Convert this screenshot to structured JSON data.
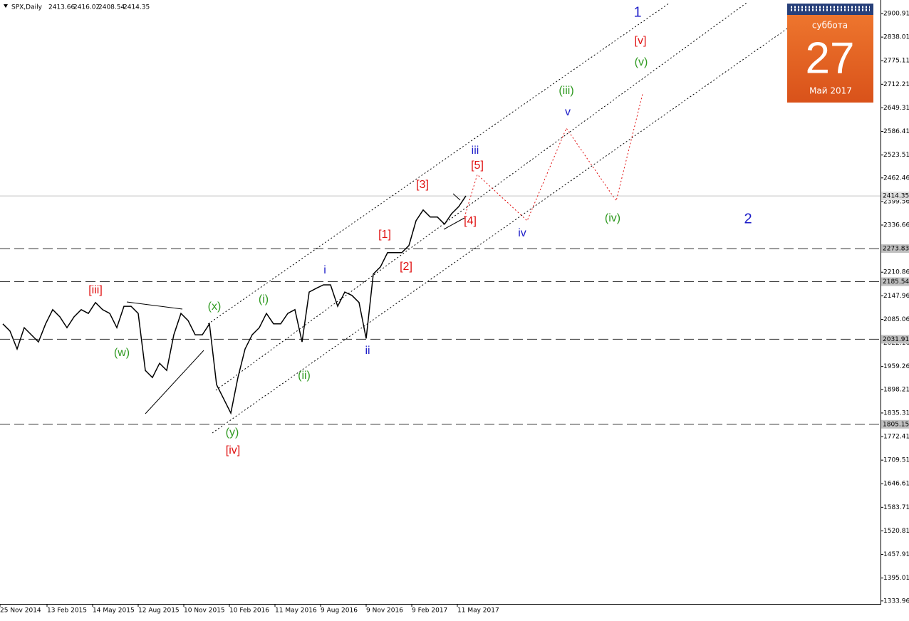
{
  "chart_data": {
    "type": "line",
    "title": "SPX,Daily",
    "ohlc": [
      2413.66,
      2416.02,
      2408.54,
      2414.35
    ],
    "color": "#000000",
    "x": [
      0,
      10,
      20,
      30,
      40,
      50,
      60,
      70,
      80,
      90,
      100,
      110,
      120,
      130,
      140,
      150,
      160,
      170,
      180,
      190,
      200,
      210,
      220,
      230,
      240,
      250,
      260,
      270,
      280,
      290,
      300,
      310,
      320,
      330,
      340,
      350,
      360,
      370,
      380,
      390,
      400,
      410,
      420,
      430,
      440,
      450,
      460,
      470,
      480,
      490,
      500,
      510,
      520,
      530,
      540,
      550,
      560,
      570,
      580,
      590,
      600,
      610,
      620,
      630,
      640,
      650
    ],
    "values": [
      2073,
      2054,
      2006,
      2063,
      2044,
      2025,
      2073,
      2111,
      2092,
      2063,
      2092,
      2111,
      2101,
      2130,
      2111,
      2101,
      2063,
      2120,
      2120,
      2101,
      1949,
      1930,
      1968,
      1949,
      2044,
      2101,
      2082,
      2044,
      2044,
      2073,
      1911,
      1873,
      1835,
      1930,
      2006,
      2044,
      2063,
      2101,
      2073,
      2073,
      2101,
      2111,
      2025,
      2158,
      2168,
      2177,
      2177,
      2120,
      2158,
      2149,
      2130,
      2034,
      2206,
      2225,
      2263,
      2263,
      2263,
      2282,
      2348,
      2377,
      2358,
      2358,
      2339,
      2367,
      2386,
      2414.35
    ],
    "xlim": [
      -4,
      1232
    ],
    "ylim": [
      1326,
      2937
    ],
    "xticks": [
      {
        "value": -4,
        "label": "25 Nov 2014"
      },
      {
        "value": 62,
        "label": "13 Feb 2015"
      },
      {
        "value": 126,
        "label": "14 May 2015"
      },
      {
        "value": 190,
        "label": "12 Aug 2015"
      },
      {
        "value": 254,
        "label": "10 Nov 2015"
      },
      {
        "value": 318,
        "label": "10 Feb 2016"
      },
      {
        "value": 382,
        "label": "11 May 2016"
      },
      {
        "value": 446,
        "label": "9 Aug 2016"
      },
      {
        "value": 510,
        "label": "9 Nov 2016"
      },
      {
        "value": 574,
        "label": "9 Feb 2017"
      },
      {
        "value": 638,
        "label": "11 May 2017"
      }
    ],
    "yticks": [
      2900.91,
      2838.01,
      2775.11,
      2712.21,
      2649.31,
      2586.41,
      2523.51,
      2462.46,
      2399.56,
      2336.66,
      2210.86,
      2147.96,
      2085.06,
      2022.16,
      1959.26,
      1898.21,
      1835.31,
      1772.41,
      1709.51,
      1646.61,
      1583.71,
      1520.81,
      1457.91,
      1395.01,
      1333.96
    ],
    "levels": [
      2273.83,
      2185.54,
      2031.91,
      1805.15
    ],
    "last_price": 2414.35,
    "annotations": [
      {
        "text": "1",
        "color": "#1c1cc8"
      },
      {
        "text": "[v]",
        "color": "#e01010"
      },
      {
        "text": "(v)",
        "color": "#2f9a20"
      },
      {
        "text": "(iii)",
        "color": "#2f9a20"
      },
      {
        "text": "v",
        "color": "#1c1cc8"
      },
      {
        "text": "iii",
        "color": "#1c1cc8"
      },
      {
        "text": "[5]",
        "color": "#e01010"
      },
      {
        "text": "[3]",
        "color": "#e01010"
      },
      {
        "text": "[4]",
        "color": "#e01010"
      },
      {
        "text": "iv",
        "color": "#1c1cc8"
      },
      {
        "text": "(iv)",
        "color": "#2f9a20"
      },
      {
        "text": "2",
        "color": "#1c1cc8"
      },
      {
        "text": "[1]",
        "color": "#e01010"
      },
      {
        "text": "[2]",
        "color": "#e01010"
      },
      {
        "text": "i",
        "color": "#1c1cc8"
      },
      {
        "text": "ii",
        "color": "#1c1cc8"
      },
      {
        "text": "(i)",
        "color": "#2f9a20"
      },
      {
        "text": "(ii)",
        "color": "#2f9a20"
      },
      {
        "text": "(x)",
        "color": "#2f9a20"
      },
      {
        "text": "(w)",
        "color": "#2f9a20"
      },
      {
        "text": "[iii]",
        "color": "#e01010"
      },
      {
        "text": "(y)",
        "color": "#2f9a20"
      },
      {
        "text": "[iv]",
        "color": "#e01010"
      }
    ]
  },
  "calendar_widget": {
    "weekday": "суббота",
    "day": "27",
    "month": "Май 2017"
  }
}
